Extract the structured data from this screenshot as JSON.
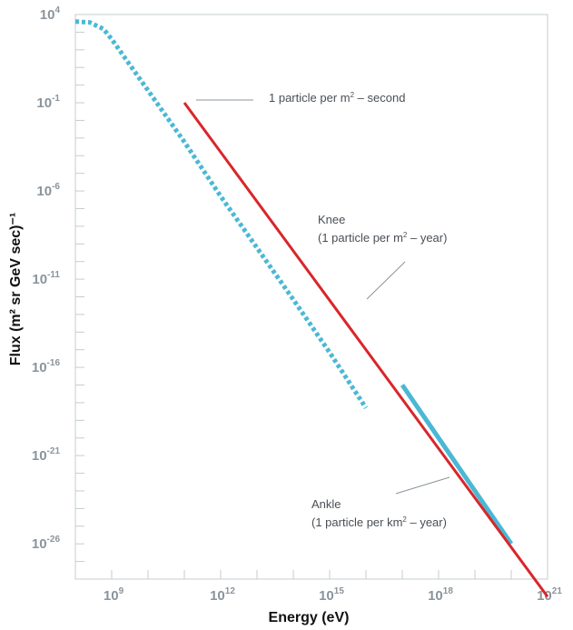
{
  "chart_data": {
    "type": "line",
    "xlabel": "Energy (eV)",
    "ylabel": "Flux (m² sr GeV sec)⁻¹",
    "x_scale": "log",
    "y_scale": "log",
    "xlim": [
      100000000.0,
      1e+21
    ],
    "ylim": [
      1e-28,
      10000.0
    ],
    "x_ticks": [
      {
        "base": "10",
        "exp": "9",
        "value": 1000000000.0
      },
      {
        "base": "10",
        "exp": "12",
        "value": 1000000000000.0
      },
      {
        "base": "10",
        "exp": "15",
        "value": 1000000000000000.0
      },
      {
        "base": "10",
        "exp": "18",
        "value": 1e+18
      },
      {
        "base": "10",
        "exp": "21",
        "value": 1e+21
      }
    ],
    "y_ticks": [
      {
        "base": "10",
        "exp": "4",
        "value": 10000.0
      },
      {
        "base": "10",
        "exp": "-1",
        "value": 0.1
      },
      {
        "base": "10",
        "exp": "-6",
        "value": 1e-06
      },
      {
        "base": "10",
        "exp": "-11",
        "value": 1e-11
      },
      {
        "base": "10",
        "exp": "-16",
        "value": 1e-16
      },
      {
        "base": "10",
        "exp": "-21",
        "value": 1e-21
      },
      {
        "base": "10",
        "exp": "-26",
        "value": 1e-26
      }
    ],
    "grid": false,
    "series": [
      {
        "style": "dotted",
        "color": "#4ab8d4",
        "points": [
          [
            100000000.0,
            4000
          ],
          [
            250000000.0,
            3600
          ],
          [
            600000000.0,
            1500
          ],
          [
            1000000000.0,
            400
          ],
          [
            10000000000.0,
            0.5
          ],
          [
            100000000000.0,
            0.0006
          ],
          [
            1000000000000.0,
            5e-07
          ],
          [
            10000000000000.0,
            6e-10
          ],
          [
            100000000000000.0,
            7e-13
          ],
          [
            1000000000000000.0,
            7e-16
          ],
          [
            1e+16,
            5e-19
          ]
        ]
      },
      {
        "style": "solid",
        "color": "#4ab8d4",
        "points": [
          [
            1e+17,
            1e-17
          ],
          [
            1e+18,
            1e-20
          ],
          [
            1e+19,
            1e-23
          ],
          [
            1e+20,
            1e-26
          ]
        ]
      },
      {
        "style": "solid",
        "color": "#d9262a",
        "points": [
          [
            100000000000.0,
            0.1
          ],
          [
            1e+21,
            1e-29
          ]
        ]
      }
    ],
    "annotations": [
      {
        "text_main": "1 particle per m",
        "text_sup": "2",
        "text_tail": " – second",
        "x": 100000000000.0,
        "y": 0.1
      },
      {
        "text_line1": "Knee",
        "text_main": "(1 particle per m",
        "text_sup": "2",
        "text_tail": " – year)",
        "x": 5000000000000000.0,
        "y": 1e-12
      },
      {
        "text_line1": "Ankle",
        "text_main": "(1 particle per km",
        "text_sup": "2",
        "text_tail": " – year)",
        "x": 1e+18,
        "y": 1e-22
      }
    ]
  }
}
